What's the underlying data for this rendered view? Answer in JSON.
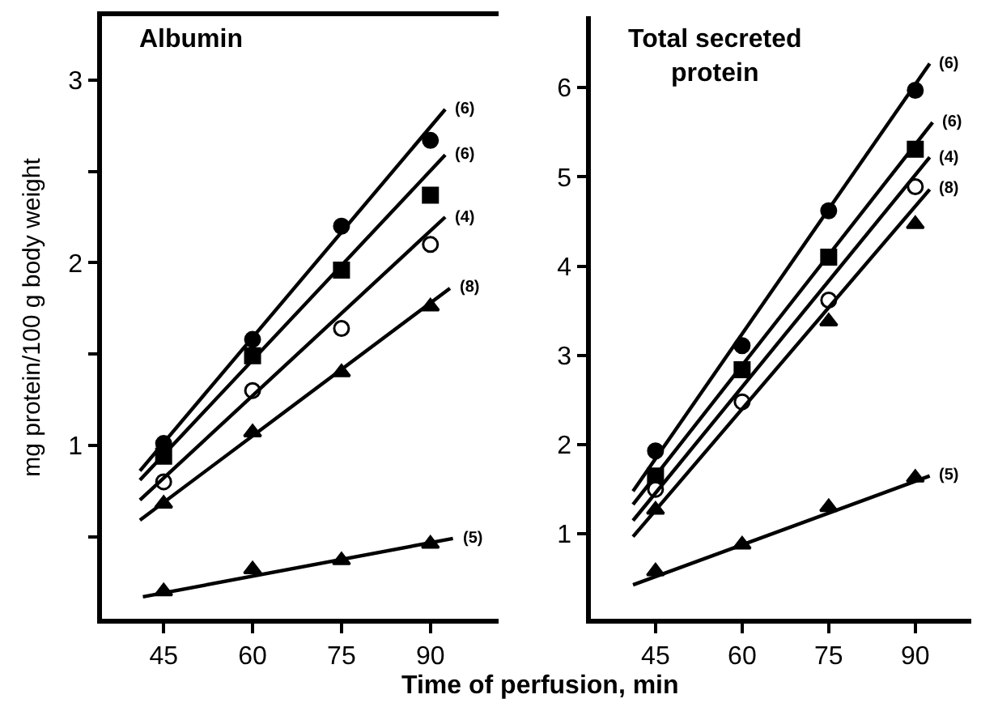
{
  "chart_data": [
    {
      "type": "scatter",
      "title": "Albumin",
      "ylabel": "mg protein/100 g body weight",
      "xlabel": "Time of perfusion, min",
      "xlim": [
        34.6,
        101.5
      ],
      "ylim": [
        0.05,
        3.35
      ],
      "xticks": [
        45,
        60,
        75,
        90
      ],
      "yticks": [
        {
          "value": 0.5,
          "label": null
        },
        1,
        {
          "value": 1.5,
          "label": null
        },
        2,
        {
          "value": 2.5,
          "label": null
        },
        3
      ],
      "grid": false,
      "legend": false,
      "series": [
        {
          "marker": "circle",
          "color": "#000000",
          "x": [
            45,
            60,
            75,
            90
          ],
          "values": [
            1.01,
            1.58,
            2.2,
            2.67
          ]
        },
        {
          "marker": "square",
          "color": "#000000",
          "x": [
            45,
            60,
            75,
            90
          ],
          "values": [
            0.94,
            1.49,
            1.96,
            2.37
          ]
        },
        {
          "marker": "circle",
          "color": "#ffffff",
          "x": [
            45,
            60,
            75,
            90
          ],
          "values": [
            0.8,
            1.3,
            1.64,
            2.1
          ]
        },
        {
          "marker": "triangle",
          "color": "#000000",
          "x": [
            45,
            60,
            75,
            90
          ],
          "values": [
            0.68,
            1.07,
            1.4,
            1.76
          ]
        },
        {
          "marker": "triangle",
          "color": "#000000",
          "x": [
            45,
            60,
            75,
            90
          ],
          "values": [
            0.2,
            0.32,
            0.37,
            0.46
          ]
        },
        {
          "type": "line",
          "marker": "none",
          "color": "#000000",
          "x": [
            41,
            92.5
          ],
          "values": [
            0.86,
            2.84
          ]
        },
        {
          "type": "line",
          "marker": "none",
          "color": "#000000",
          "x": [
            41,
            92.5
          ],
          "values": [
            0.81,
            2.59
          ]
        },
        {
          "type": "line",
          "marker": "none",
          "color": "#000000",
          "x": [
            41,
            92.5
          ],
          "values": [
            0.7,
            2.25
          ]
        },
        {
          "type": "line",
          "marker": "none",
          "color": "#000000",
          "x": [
            41,
            93.3
          ],
          "values": [
            0.59,
            1.86
          ]
        },
        {
          "type": "line",
          "marker": "none",
          "color": "#000000",
          "x": [
            41.5,
            93.8
          ],
          "values": [
            0.17,
            0.49
          ]
        }
      ],
      "annotations": [
        "(6)",
        "(6)",
        "(4)",
        "(8)",
        "(5)"
      ]
    },
    {
      "type": "scatter",
      "title": "Total secreted protein",
      "xlim": [
        33.8,
        99.7
      ],
      "ylim": [
        0.05,
        6.8
      ],
      "xticks": [
        45,
        60,
        75,
        90
      ],
      "yticks": [
        1,
        2,
        3,
        4,
        5,
        6
      ],
      "grid": false,
      "legend": false,
      "series": [
        {
          "marker": "circle",
          "color": "#000000",
          "x": [
            45,
            60,
            75,
            90
          ],
          "values": [
            1.93,
            3.11,
            4.62,
            5.97
          ]
        },
        {
          "marker": "square",
          "color": "#000000",
          "x": [
            45,
            60,
            75,
            90
          ],
          "values": [
            1.65,
            2.84,
            4.1,
            5.31
          ]
        },
        {
          "marker": "circle",
          "color": "#ffffff",
          "x": [
            45,
            60,
            75,
            90
          ],
          "values": [
            1.5,
            2.48,
            3.62,
            4.89
          ]
        },
        {
          "marker": "triangle",
          "color": "#000000",
          "x": [
            45,
            60,
            75,
            90
          ],
          "values": [
            1.27,
            null,
            3.38,
            4.47
          ]
        },
        {
          "marker": "triangle",
          "color": "#000000",
          "x": [
            45,
            60,
            75,
            90
          ],
          "values": [
            0.58,
            0.88,
            1.3,
            1.63
          ]
        },
        {
          "type": "line",
          "marker": "none",
          "color": "#000000",
          "x": [
            41.1,
            92.5
          ],
          "values": [
            1.48,
            6.27
          ]
        },
        {
          "type": "line",
          "marker": "none",
          "color": "#000000",
          "x": [
            41.1,
            93
          ],
          "values": [
            1.33,
            5.61
          ]
        },
        {
          "type": "line",
          "marker": "none",
          "color": "#000000",
          "x": [
            41.1,
            92.5
          ],
          "values": [
            1.15,
            5.22
          ]
        },
        {
          "type": "line",
          "marker": "none",
          "color": "#000000",
          "x": [
            41.1,
            92.5
          ],
          "values": [
            0.97,
            4.86
          ]
        },
        {
          "type": "line",
          "marker": "none",
          "color": "#000000",
          "x": [
            41.1,
            92.5
          ],
          "values": [
            0.43,
            1.65
          ]
        }
      ],
      "annotations": [
        "(6)",
        "(6)",
        "(4)",
        "(8)",
        "(5)"
      ]
    }
  ]
}
